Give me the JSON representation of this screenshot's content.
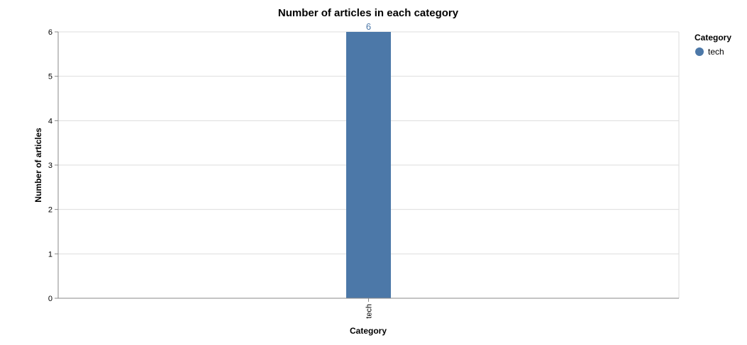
{
  "chart_data": {
    "type": "bar",
    "title": "Number of articles in each category",
    "xlabel": "Category",
    "ylabel": "Number of articles",
    "categories": [
      "tech"
    ],
    "values": [
      6
    ],
    "data_labels": [
      "6"
    ],
    "ylim": [
      0,
      6
    ],
    "yticks": [
      "0",
      "1",
      "2",
      "3",
      "4",
      "5",
      "6"
    ],
    "grid": true,
    "legend": {
      "title": "Category",
      "placement": "right",
      "entries": [
        {
          "label": "tech",
          "color": "#4c78a8"
        }
      ]
    },
    "colors": {
      "bar": "#4c78a8",
      "grid": "#dddddd",
      "axis": "#888888",
      "data_label": "#4c78a8"
    }
  }
}
